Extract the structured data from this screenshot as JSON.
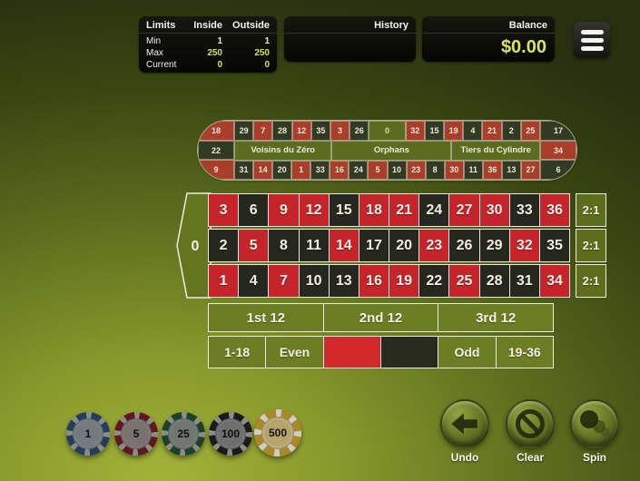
{
  "theme": {
    "felt_bright": "#a3b338",
    "felt_dark": "#28300f",
    "red": "#c5242b",
    "black": "#26271e",
    "cell_green": "#6d7d23",
    "accent_yellow": "#d9e65c",
    "panel_black": "#0a0b07",
    "border_white": "#ecece2"
  },
  "limits_panel": {
    "title": "Limits",
    "columns": [
      "Inside",
      "Outside"
    ],
    "rows": [
      {
        "label": "Min",
        "inside": "1",
        "outside": "1"
      },
      {
        "label": "Max",
        "inside": "250",
        "outside": "250"
      },
      {
        "label": "Current",
        "inside": "0",
        "outside": "0"
      }
    ]
  },
  "history_panel": {
    "title": "History"
  },
  "balance_panel": {
    "title": "Balance",
    "value": "$0.00"
  },
  "menu": {
    "icon": "hamburger-icon"
  },
  "racetrack": {
    "sectors": [
      "Voisins du Zéro",
      "Orphans",
      "Tiers du Cylindre"
    ],
    "left_cap": [
      {
        "n": "18",
        "c": "r"
      },
      {
        "n": "22",
        "c": "k"
      },
      {
        "n": "9",
        "c": "r"
      }
    ],
    "right_cap": [
      {
        "n": "17",
        "c": "k"
      },
      {
        "n": "34",
        "c": "r"
      },
      {
        "n": "6",
        "c": "k"
      }
    ],
    "top_row": [
      29,
      7,
      28,
      12,
      35,
      3,
      26,
      0,
      32,
      15,
      19,
      4,
      21,
      2,
      25
    ],
    "bottom_row": [
      31,
      14,
      20,
      1,
      33,
      16,
      24,
      5,
      10,
      23,
      8,
      30,
      11,
      36,
      13,
      27
    ]
  },
  "table": {
    "zero": "0",
    "rows": [
      [
        3,
        6,
        9,
        12,
        15,
        18,
        21,
        24,
        27,
        30,
        33,
        36
      ],
      [
        2,
        5,
        8,
        11,
        14,
        17,
        20,
        23,
        26,
        29,
        32,
        35
      ],
      [
        1,
        4,
        7,
        10,
        13,
        16,
        19,
        22,
        25,
        28,
        31,
        34
      ]
    ],
    "red_numbers": [
      1,
      3,
      5,
      7,
      9,
      12,
      14,
      16,
      18,
      19,
      21,
      23,
      25,
      27,
      30,
      32,
      34,
      36
    ],
    "column_bet_label": "2:1",
    "dozens": [
      "1st 12",
      "2nd 12",
      "3rd 12"
    ],
    "outside": [
      {
        "label": "1-18",
        "type": "green"
      },
      {
        "label": "Even",
        "type": "green"
      },
      {
        "label": "",
        "type": "red"
      },
      {
        "label": "",
        "type": "black"
      },
      {
        "label": "Odd",
        "type": "green"
      },
      {
        "label": "19-36",
        "type": "green"
      }
    ]
  },
  "chips": [
    {
      "value": "1",
      "color": "#35679f",
      "center": "#c0ccd5",
      "dim": true
    },
    {
      "value": "5",
      "color": "#ae2330",
      "center": "#cdbcbc",
      "dim": true
    },
    {
      "value": "25",
      "color": "#27713c",
      "center": "#b9c6ba",
      "dim": true
    },
    {
      "value": "100",
      "color": "#2c2c2c",
      "center": "#b5b8b5",
      "dim": true
    },
    {
      "value": "500",
      "color": "#c19a2e",
      "center": "#cfba79",
      "dim": false
    }
  ],
  "actions": [
    {
      "label": "Undo",
      "icon": "undo-arrow-icon"
    },
    {
      "label": "Clear",
      "icon": "clear-prohibition-icon"
    },
    {
      "label": "Spin",
      "icon": "spin-ball-icon"
    }
  ]
}
